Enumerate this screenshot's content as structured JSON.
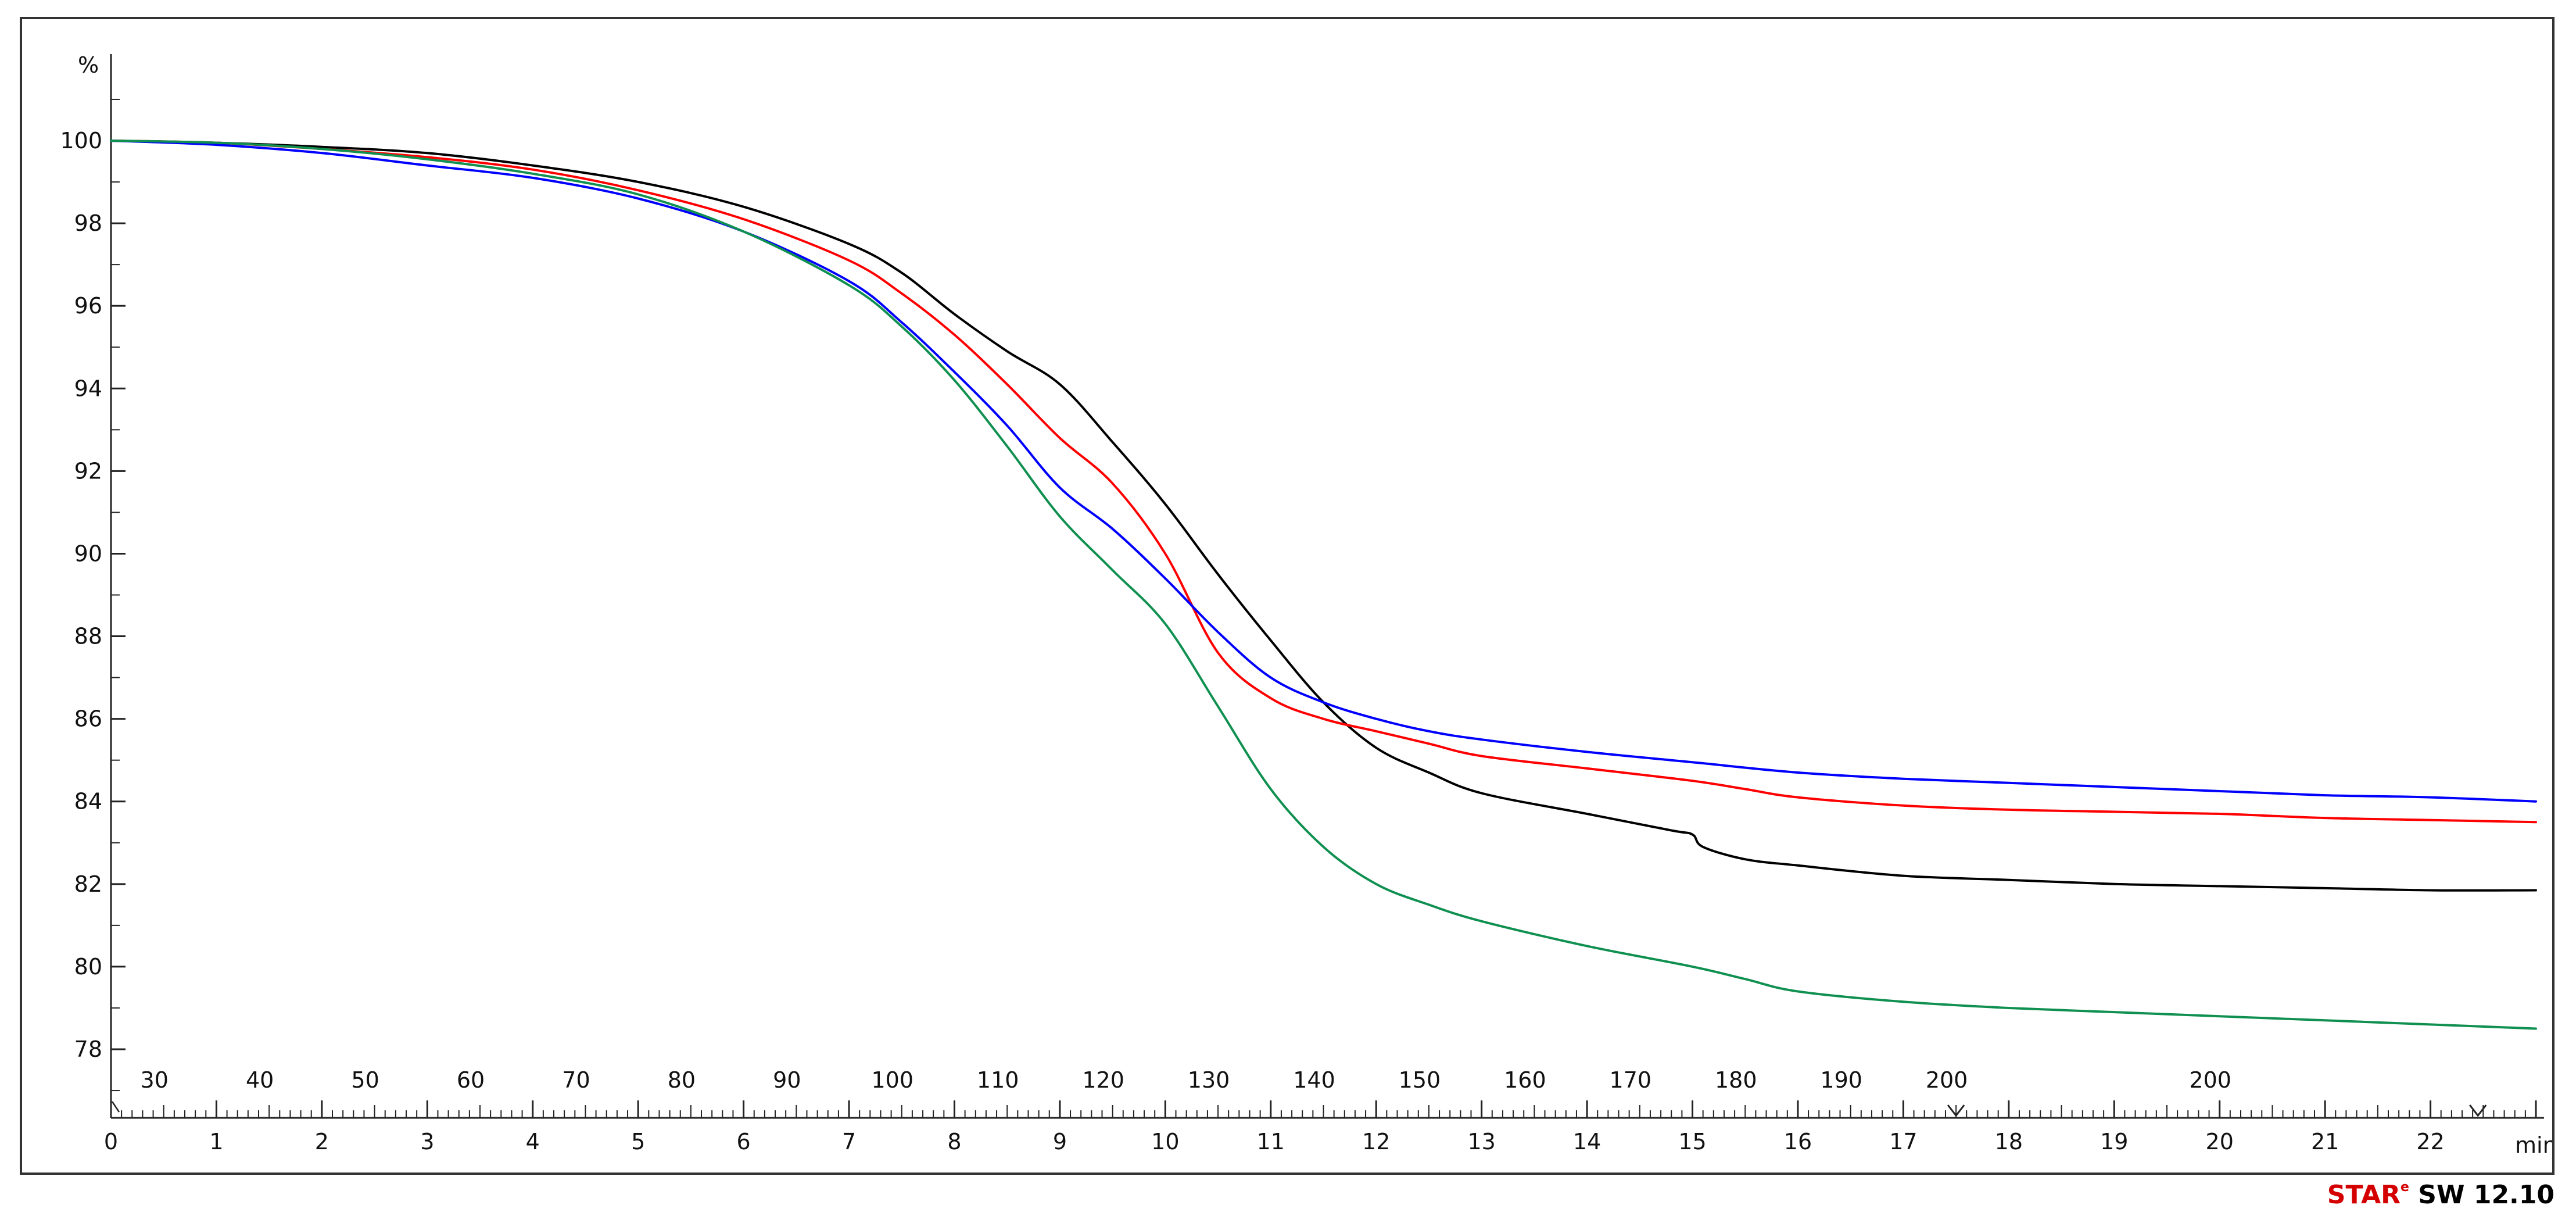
{
  "chart_data": {
    "type": "line",
    "ylabel": "%",
    "xlabel": "min",
    "ylim": [
      77,
      102
    ],
    "xlim": [
      0,
      23
    ],
    "y_ticks": [
      100,
      98,
      96,
      94,
      92,
      90,
      88,
      86,
      84,
      82,
      80,
      78
    ],
    "x_ticks": [
      0,
      1,
      2,
      3,
      4,
      5,
      6,
      7,
      8,
      9,
      10,
      11,
      12,
      13,
      14,
      15,
      16,
      17,
      18,
      19,
      20,
      21,
      22
    ],
    "temperature_axis": {
      "labels": [
        {
          "t": 0.5,
          "label": "30"
        },
        {
          "t": 1.5,
          "label": "40"
        },
        {
          "t": 2.5,
          "label": "50"
        },
        {
          "t": 3.5,
          "label": "60"
        },
        {
          "t": 4.5,
          "label": "70"
        },
        {
          "t": 5.5,
          "label": "80"
        },
        {
          "t": 6.5,
          "label": "90"
        },
        {
          "t": 7.5,
          "label": "100"
        },
        {
          "t": 8.5,
          "label": "110"
        },
        {
          "t": 9.5,
          "label": "120"
        },
        {
          "t": 10.5,
          "label": "130"
        },
        {
          "t": 11.5,
          "label": "140"
        },
        {
          "t": 12.5,
          "label": "150"
        },
        {
          "t": 13.5,
          "label": "160"
        },
        {
          "t": 14.5,
          "label": "170"
        },
        {
          "t": 15.5,
          "label": "180"
        },
        {
          "t": 16.5,
          "label": "190"
        },
        {
          "t": 17.5,
          "label": "200"
        },
        {
          "t": 20.0,
          "label": "200"
        }
      ]
    },
    "grid": false,
    "series": [
      {
        "color": "#000000",
        "x": [
          0,
          1,
          2,
          3,
          4,
          5,
          6,
          7,
          7.5,
          8,
          8.5,
          9,
          9.5,
          10,
          10.5,
          11,
          11.5,
          12,
          12.5,
          13,
          14,
          14.8,
          15,
          15.1,
          15.5,
          16,
          17,
          18,
          19,
          20,
          21,
          22,
          23
        ],
        "y": [
          100,
          99.95,
          99.85,
          99.7,
          99.4,
          99.0,
          98.4,
          97.5,
          96.8,
          95.8,
          94.9,
          94.1,
          92.7,
          91.2,
          89.5,
          87.9,
          86.4,
          85.3,
          84.7,
          84.2,
          83.7,
          83.3,
          83.2,
          82.9,
          82.6,
          82.45,
          82.2,
          82.1,
          82.0,
          81.95,
          81.9,
          81.85,
          81.85
        ]
      },
      {
        "color": "#ff0000",
        "x": [
          0,
          1,
          2,
          3,
          4,
          5,
          6,
          7,
          7.5,
          8,
          8.5,
          9,
          9.5,
          10,
          10.5,
          11,
          11.5,
          12,
          12.5,
          13,
          14,
          15,
          15.5,
          16,
          17,
          18,
          19,
          20,
          21,
          22,
          23
        ],
        "y": [
          100,
          99.95,
          99.8,
          99.6,
          99.3,
          98.8,
          98.1,
          97.1,
          96.3,
          95.3,
          94.1,
          92.8,
          91.7,
          90.0,
          87.6,
          86.5,
          86.0,
          85.7,
          85.4,
          85.1,
          84.8,
          84.5,
          84.3,
          84.1,
          83.9,
          83.8,
          83.75,
          83.7,
          83.6,
          83.55,
          83.5
        ]
      },
      {
        "color": "#0000ff",
        "x": [
          0,
          1,
          2,
          3,
          4,
          5,
          6,
          7,
          7.5,
          8,
          8.5,
          9,
          9.5,
          10,
          10.5,
          11,
          11.5,
          12,
          12.5,
          13,
          14,
          15,
          16,
          17,
          18,
          19,
          20,
          21,
          22,
          23
        ],
        "y": [
          100,
          99.9,
          99.7,
          99.4,
          99.1,
          98.6,
          97.8,
          96.6,
          95.6,
          94.4,
          93.1,
          91.6,
          90.6,
          89.4,
          88.1,
          87.0,
          86.4,
          86.0,
          85.7,
          85.5,
          85.2,
          84.95,
          84.7,
          84.55,
          84.45,
          84.35,
          84.25,
          84.15,
          84.1,
          84.0
        ]
      },
      {
        "color": "#109050",
        "x": [
          0,
          1,
          2,
          3,
          4,
          5,
          6,
          7,
          7.5,
          8,
          8.5,
          9,
          9.5,
          10,
          10.5,
          11,
          11.5,
          12,
          12.5,
          13,
          14,
          15,
          15.5,
          16,
          17,
          18,
          19,
          20,
          21,
          22,
          23
        ],
        "y": [
          100,
          99.95,
          99.8,
          99.55,
          99.2,
          98.7,
          97.8,
          96.5,
          95.5,
          94.2,
          92.6,
          90.9,
          89.6,
          88.3,
          86.3,
          84.3,
          82.9,
          82.0,
          81.5,
          81.1,
          80.5,
          80.0,
          79.7,
          79.4,
          79.15,
          79.0,
          78.9,
          78.8,
          78.7,
          78.6,
          78.5
        ]
      }
    ]
  },
  "footer": {
    "brand_star": "STAR",
    "brand_dot": "e",
    "brand_version": "SW 12.10"
  }
}
